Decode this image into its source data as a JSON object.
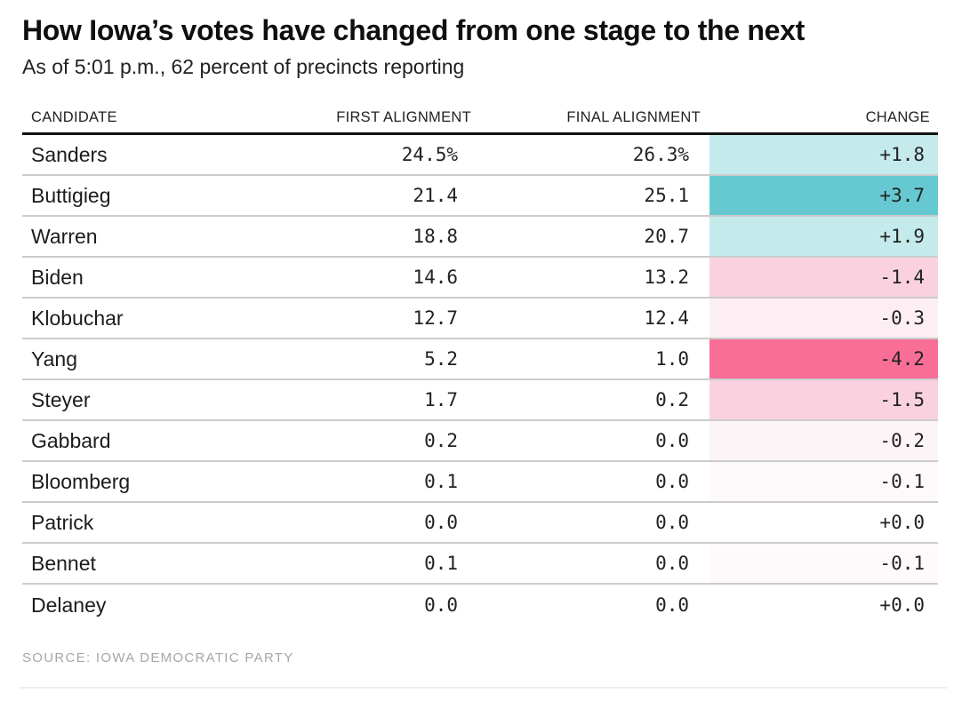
{
  "chart_data": {
    "type": "table",
    "title": "How Iowa’s votes have changed from one stage to the next",
    "subtitle": "As of 5:01 p.m., 62 percent of precincts reporting",
    "columns": [
      "CANDIDATE",
      "FIRST ALIGNMENT",
      "FINAL ALIGNMENT",
      "CHANGE"
    ],
    "rows": [
      {
        "candidate": "Sanders",
        "first": "24.5%",
        "final": "26.3%",
        "change": "+1.8",
        "first_value": 24.5,
        "final_value": 26.3,
        "change_value": 1.8,
        "change_color": "#c5eaec"
      },
      {
        "candidate": "Buttigieg",
        "first": "21.4",
        "final": "25.1",
        "change": "+3.7",
        "first_value": 21.4,
        "final_value": 25.1,
        "change_value": 3.7,
        "change_color": "#66c9d1"
      },
      {
        "candidate": "Warren",
        "first": "18.8",
        "final": "20.7",
        "change": "+1.9",
        "first_value": 18.8,
        "final_value": 20.7,
        "change_value": 1.9,
        "change_color": "#c5eaec"
      },
      {
        "candidate": "Biden",
        "first": "14.6",
        "final": "13.2",
        "change": "-1.4",
        "first_value": 14.6,
        "final_value": 13.2,
        "change_value": -1.4,
        "change_color": "#fad2df"
      },
      {
        "candidate": "Klobuchar",
        "first": "12.7",
        "final": "12.4",
        "change": "-0.3",
        "first_value": 12.7,
        "final_value": 12.4,
        "change_value": -0.3,
        "change_color": "#fdeef4"
      },
      {
        "candidate": "Yang",
        "first": "5.2",
        "final": "1.0",
        "change": "-4.2",
        "first_value": 5.2,
        "final_value": 1.0,
        "change_value": -4.2,
        "change_color": "#f96e96"
      },
      {
        "candidate": "Steyer",
        "first": "1.7",
        "final": "0.2",
        "change": "-1.5",
        "first_value": 1.7,
        "final_value": 0.2,
        "change_value": -1.5,
        "change_color": "#fad2df"
      },
      {
        "candidate": "Gabbard",
        "first": "0.2",
        "final": "0.0",
        "change": "-0.2",
        "first_value": 0.2,
        "final_value": 0.0,
        "change_value": -0.2,
        "change_color": "#fdf4f8"
      },
      {
        "candidate": "Bloomberg",
        "first": "0.1",
        "final": "0.0",
        "change": "-0.1",
        "first_value": 0.1,
        "final_value": 0.0,
        "change_value": -0.1,
        "change_color": "#fef9fb"
      },
      {
        "candidate": "Patrick",
        "first": "0.0",
        "final": "0.0",
        "change": "+0.0",
        "first_value": 0.0,
        "final_value": 0.0,
        "change_value": 0.0,
        "change_color": "#ffffff"
      },
      {
        "candidate": "Bennet",
        "first": "0.1",
        "final": "0.0",
        "change": "-0.1",
        "first_value": 0.1,
        "final_value": 0.0,
        "change_value": -0.1,
        "change_color": "#fef9fb"
      },
      {
        "candidate": "Delaney",
        "first": "0.0",
        "final": "0.0",
        "change": "+0.0",
        "first_value": 0.0,
        "final_value": 0.0,
        "change_value": 0.0,
        "change_color": "#ffffff"
      }
    ],
    "source": "SOURCE: IOWA DEMOCRATIC PARTY",
    "layout": {
      "grid": "off",
      "legend": "none"
    },
    "palette": {
      "gain_strong": "#66c9d1",
      "gain_light": "#c5eaec",
      "loss_strong": "#f96e96",
      "loss_medium": "#fad2df",
      "loss_light": "#fdeef4",
      "loss_faint": "#fdf4f8",
      "loss_trace": "#fef9fb",
      "neutral": "#ffffff",
      "header_rule": "#111111",
      "row_divider": "#cccccc",
      "source_text": "#a6a6a6"
    }
  }
}
